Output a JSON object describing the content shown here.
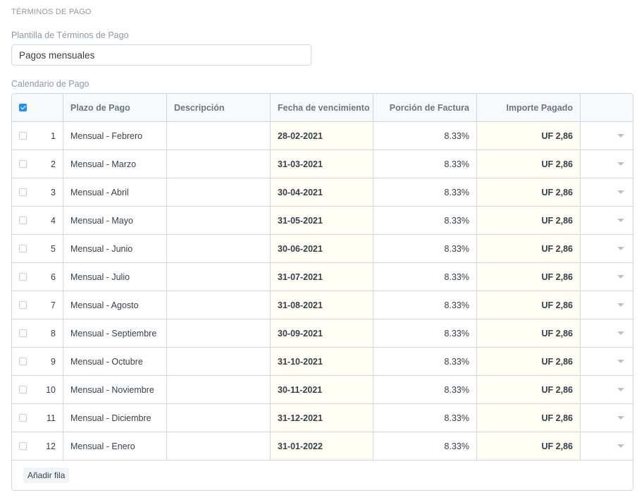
{
  "section": {
    "title": "TÉRMINOS DE PAGO"
  },
  "template": {
    "label": "Plantilla de Términos de Pago",
    "value": "Pagos mensuales"
  },
  "schedule": {
    "label": "Calendario de Pago",
    "columns": {
      "term": "Plazo de Pago",
      "description": "Descripción",
      "due_date": "Fecha de vencimiento",
      "portion": "Porción de Factura",
      "amount": "Importe Pagado"
    },
    "rows": [
      {
        "idx": "1",
        "term": "Mensual - Febrero",
        "description": "",
        "due_date": "28-02-2021",
        "portion": "8.33%",
        "amount": "UF 2,86"
      },
      {
        "idx": "2",
        "term": "Mensual - Marzo",
        "description": "",
        "due_date": "31-03-2021",
        "portion": "8.33%",
        "amount": "UF 2,86"
      },
      {
        "idx": "3",
        "term": "Mensual - Abril",
        "description": "",
        "due_date": "30-04-2021",
        "portion": "8.33%",
        "amount": "UF 2,86"
      },
      {
        "idx": "4",
        "term": "Mensual - Mayo",
        "description": "",
        "due_date": "31-05-2021",
        "portion": "8.33%",
        "amount": "UF 2,86"
      },
      {
        "idx": "5",
        "term": "Mensual - Junio",
        "description": "",
        "due_date": "30-06-2021",
        "portion": "8.33%",
        "amount": "UF 2,86"
      },
      {
        "idx": "6",
        "term": "Mensual - Julio",
        "description": "",
        "due_date": "31-07-2021",
        "portion": "8.33%",
        "amount": "UF 2,86"
      },
      {
        "idx": "7",
        "term": "Mensual - Agosto",
        "description": "",
        "due_date": "31-08-2021",
        "portion": "8.33%",
        "amount": "UF 2,86"
      },
      {
        "idx": "8",
        "term": "Mensual - Septiembre",
        "description": "",
        "due_date": "30-09-2021",
        "portion": "8.33%",
        "amount": "UF 2,86"
      },
      {
        "idx": "9",
        "term": "Mensual - Octubre",
        "description": "",
        "due_date": "31-10-2021",
        "portion": "8.33%",
        "amount": "UF 2,86"
      },
      {
        "idx": "10",
        "term": "Mensual - Noviembre",
        "description": "",
        "due_date": "30-11-2021",
        "portion": "8.33%",
        "amount": "UF 2,86"
      },
      {
        "idx": "11",
        "term": "Mensual - Diciembre",
        "description": "",
        "due_date": "31-12-2021",
        "portion": "8.33%",
        "amount": "UF 2,86"
      },
      {
        "idx": "12",
        "term": "Mensual - Enero",
        "description": "",
        "due_date": "31-01-2022",
        "portion": "8.33%",
        "amount": "UF 2,86"
      }
    ],
    "add_row_label": "Añadir fila",
    "select_all_checked": true
  },
  "colors": {
    "accent": "#2490ef",
    "highlight_cell": "#fffdf4",
    "border": "#d1d8dd",
    "muted_text": "#8d99a6"
  },
  "icons": {
    "row_menu": "caret-down-icon",
    "select_all": "checkbox-checked-icon"
  }
}
